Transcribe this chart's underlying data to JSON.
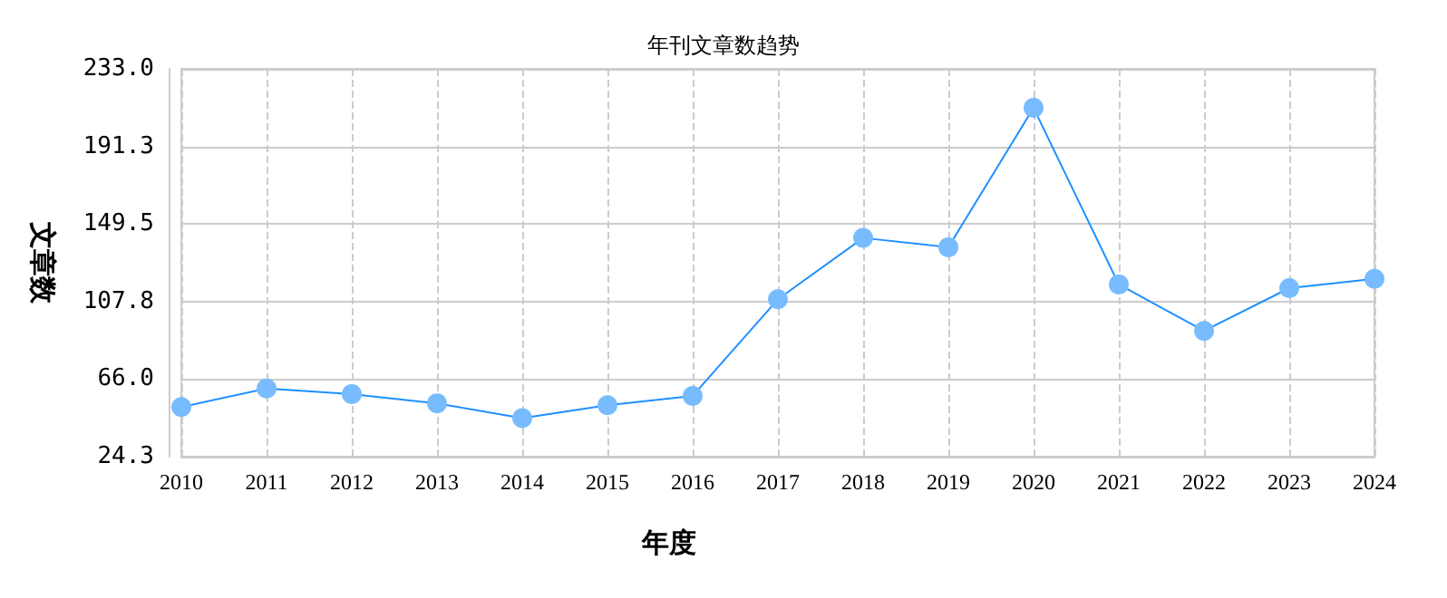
{
  "chart_data": {
    "type": "line",
    "title": "年刊文章数趋势",
    "xlabel": "年度",
    "ylabel": "文章数",
    "categories": [
      "2010",
      "2011",
      "2012",
      "2013",
      "2014",
      "2015",
      "2016",
      "2017",
      "2018",
      "2019",
      "2020",
      "2021",
      "2022",
      "2023",
      "2024"
    ],
    "series": [
      {
        "color": "#1e90ff",
        "values": [
          51,
          61,
          58,
          53,
          45,
          52,
          57,
          109,
          142,
          137,
          212,
          117,
          92,
          115,
          120
        ]
      }
    ],
    "ylim": [
      24.3,
      233.0
    ],
    "yticks": [
      {
        "value": 24.3,
        "label": "24.3"
      },
      {
        "value": 66.0,
        "label": "66.0"
      },
      {
        "value": 107.8,
        "label": "107.8"
      },
      {
        "value": 149.5,
        "label": "149.5"
      },
      {
        "value": 191.3,
        "label": "191.3"
      },
      {
        "value": 233.0,
        "label": "233.0"
      }
    ],
    "grid": true,
    "marker": "circle",
    "line_style": "solid"
  }
}
